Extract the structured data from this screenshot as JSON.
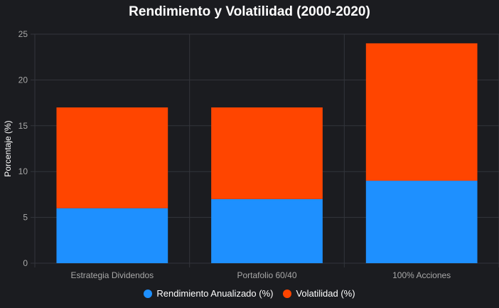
{
  "chart_data": {
    "type": "bar",
    "stacked": true,
    "title": "Rendimiento y Volatilidad (2000-2020)",
    "ylabel": "Porcentaje (%)",
    "xlabel": "",
    "categories": [
      "Estrategia Dividendos",
      "Portafolio 60/40",
      "100% Acciones"
    ],
    "series": [
      {
        "name": "Rendimiento Anualizado (%)",
        "values": [
          6,
          7,
          9
        ],
        "color": "#1e90ff"
      },
      {
        "name": "Volatilidad (%)",
        "values": [
          11,
          10,
          15
        ],
        "color": "#ff4500"
      }
    ],
    "ylim": [
      0,
      25
    ],
    "yticks": [
      "0",
      "5",
      "10",
      "15",
      "20",
      "25"
    ],
    "grid": true,
    "legend_position": "bottom"
  }
}
